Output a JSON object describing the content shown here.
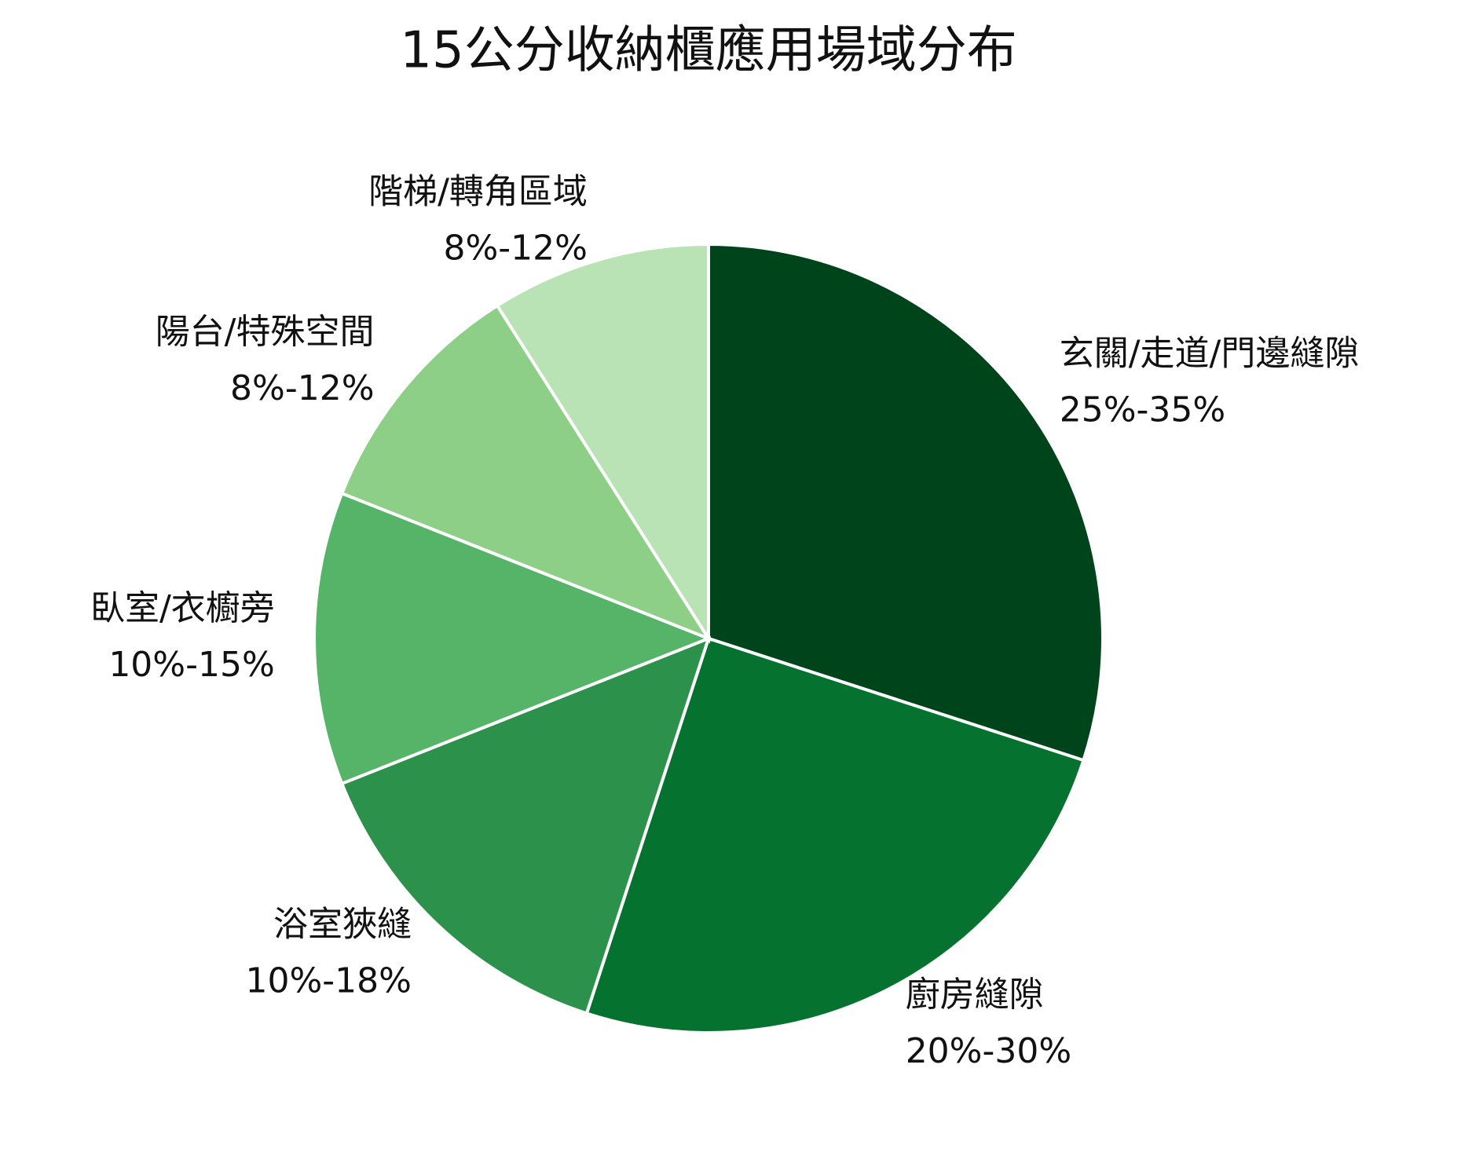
{
  "chart_data": {
    "type": "pie",
    "title": "15公分收納櫃應用場域分布",
    "categories": [
      "玄關/走道/門邊縫隙",
      "廚房縫隙",
      "浴室狹縫",
      "臥室/衣櫥旁",
      "陽台/特殊空間",
      "階梯/轉角區域"
    ],
    "values": [
      30,
      25,
      14,
      12,
      10,
      9
    ],
    "value_labels": [
      "25%-35%",
      "20%-30%",
      "10%-18%",
      "10%-15%",
      "8%-12%",
      "8%-12%"
    ],
    "colors": [
      "#00441b",
      "#067230",
      "#2c924b",
      "#55b467",
      "#8ecf88",
      "#bae3b5"
    ]
  }
}
